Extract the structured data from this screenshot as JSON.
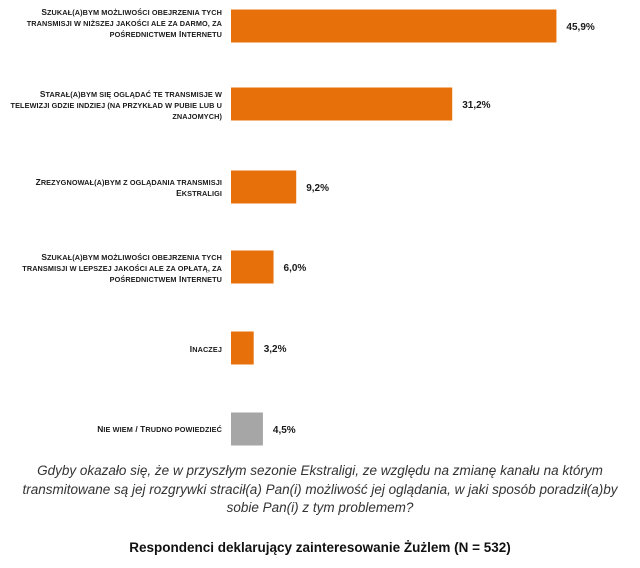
{
  "chart_data": {
    "type": "bar",
    "orientation": "horizontal",
    "categories": [
      "Szukał(a)bym możliwości obejrzenia tych transmisji w niższej jakości ale za darmo, za pośrednictwem Internetu",
      "Starał(a)bym się oglądać te transmisje w telewizji gdzie indziej (na przykład w pubie lub u znajomych)",
      "Zrezygnował(a)bym z oglądania transmisji Ekstraligi",
      "Szukał(a)bym możliwości obejrzenia tych transmisji w lepszej jakości ale za opłatą, za pośrednictwem Internetu",
      "Inaczej",
      "Nie wiem / Trudno powiedzieć"
    ],
    "values": [
      45.9,
      31.2,
      9.2,
      6.0,
      3.2,
      4.5
    ],
    "value_labels": [
      "45,9%",
      "31,2%",
      "9,2%",
      "6,0%",
      "3,2%",
      "4,5%"
    ],
    "colors": [
      "#e8700a",
      "#e8700a",
      "#e8700a",
      "#e8700a",
      "#e8700a",
      "#a6a6a6"
    ],
    "xlim": [
      0,
      50
    ],
    "grid": false,
    "legend": "none"
  },
  "question": "Gdyby okazało się, że w przyszłym sezonie Ekstraligi, ze względu na zmianę kanału na którym transmitowane są jej rozgrywki stracił(a) Pan(i) możliwość jej oglądania, w jaki sposób poradził(a)by sobie Pan(i) z tym problemem?",
  "footer": "Respondenci deklarujący zainteresowanie Żużlem (N = 532)"
}
